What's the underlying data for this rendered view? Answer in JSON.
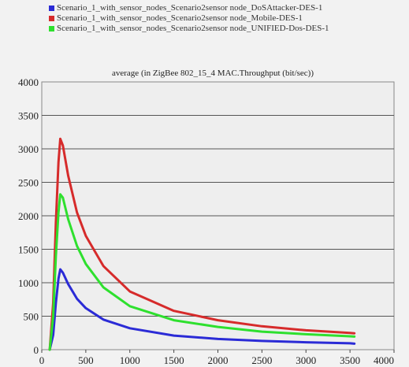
{
  "colors": {
    "blue": "#2b2bd6",
    "red": "#d62b2b",
    "green": "#2ee02e",
    "plot_bg": "#eeeeee",
    "grid": "#555555"
  },
  "legend": {
    "items": [
      {
        "label": "Scenario_1_with_sensor_nodes_Scenario2sensor node_DoSAttacker-DES-1",
        "color": "#2b2bd6"
      },
      {
        "label": "Scenario_1_with_sensor_nodes_Scenario2sensor node_Mobile-DES-1",
        "color": "#d62b2b"
      },
      {
        "label": "Scenario_1_with_sensor_nodes_Scenario2sensor node_UNIFIED-Dos-DES-1",
        "color": "#2ee02e"
      }
    ]
  },
  "chart_data": {
    "type": "line",
    "title": "average (in ZigBee 802_15_4 MAC.Throughput (bit/sec))",
    "xlabel": "",
    "ylabel": "",
    "xlim": [
      0,
      4000
    ],
    "ylim": [
      0,
      4000
    ],
    "x_ticks": [
      "0",
      "500",
      "1000",
      "1500",
      "2000",
      "2500",
      "3000",
      "3500",
      "4000"
    ],
    "y_ticks": [
      "0",
      "500",
      "1000",
      "1500",
      "2000",
      "2500",
      "3000",
      "3500",
      "4000"
    ],
    "grid": "horizontal",
    "legend_position": "top",
    "x": [
      90,
      130,
      160,
      190,
      210,
      240,
      300,
      400,
      500,
      700,
      1000,
      1500,
      2000,
      2500,
      3000,
      3500,
      3550
    ],
    "series": [
      {
        "name": "Scenario_1_with_sensor_nodes_Scenario2sensor node_DoSAttacker-DES-1",
        "color": "#2b2bd6",
        "values": [
          0,
          220,
          700,
          1060,
          1200,
          1150,
          980,
          760,
          620,
          450,
          320,
          210,
          160,
          130,
          110,
          95,
          90
        ]
      },
      {
        "name": "Scenario_1_with_sensor_nodes_Scenario2sensor node_Mobile-DES-1",
        "color": "#d62b2b",
        "values": [
          0,
          700,
          1900,
          2800,
          3150,
          3050,
          2600,
          2050,
          1700,
          1250,
          870,
          580,
          440,
          350,
          290,
          250,
          245
        ]
      },
      {
        "name": "Scenario_1_with_sensor_nodes_Scenario2sensor node_UNIFIED-Dos-DES-1",
        "color": "#2ee02e",
        "values": [
          0,
          500,
          1400,
          2050,
          2320,
          2270,
          1950,
          1550,
          1280,
          930,
          650,
          440,
          340,
          270,
          230,
          200,
          195
        ]
      }
    ]
  }
}
